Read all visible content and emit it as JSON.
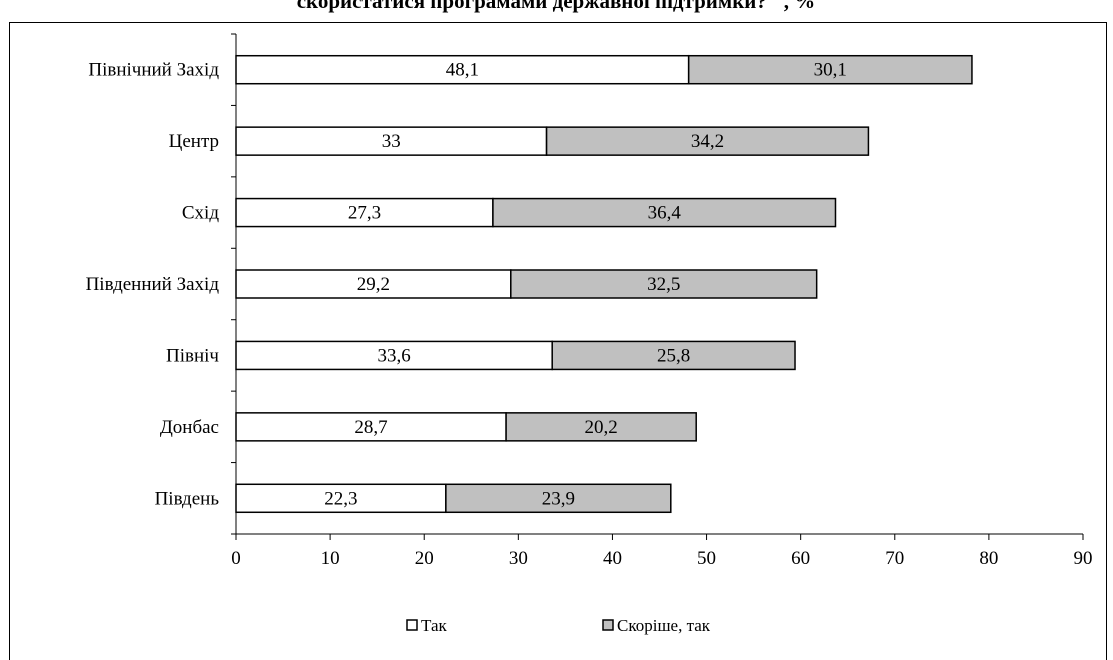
{
  "chart_data": {
    "type": "bar",
    "orientation": "horizontal",
    "stacked": true,
    "title": "скористатися програмами державної підтримки? \", %",
    "categories": [
      "Північний Захід",
      "Центр",
      "Схід",
      "Південний Захід",
      "Північ",
      "Донбас",
      "Південь"
    ],
    "series": [
      {
        "name": "Так",
        "values": [
          48.1,
          33,
          27.3,
          29.2,
          33.6,
          28.7,
          22.3
        ],
        "labels": [
          "48,1",
          "33",
          "27,3",
          "29,2",
          "33,6",
          "28,7",
          "22,3"
        ],
        "color": "#ffffff"
      },
      {
        "name": "Скоріше, так",
        "values": [
          30.1,
          34.2,
          36.4,
          32.5,
          25.8,
          20.2,
          23.9
        ],
        "labels": [
          "30,1",
          "34,2",
          "36,4",
          "32,5",
          "25,8",
          "20,2",
          "23,9"
        ],
        "color": "#c0c0c0"
      }
    ],
    "xlim": [
      0,
      90
    ],
    "xticks": [
      "0",
      "10",
      "20",
      "30",
      "40",
      "50",
      "60",
      "70",
      "80",
      "90"
    ],
    "xlabel": "",
    "ylabel": "",
    "grid": false,
    "legend_position": "bottom"
  }
}
